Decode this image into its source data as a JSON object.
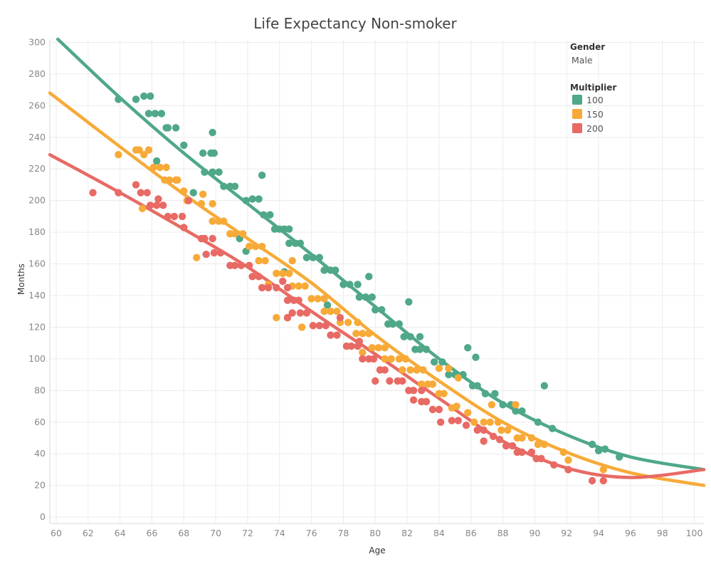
{
  "colors": {
    "100": "#4fa888",
    "150": "#f7aa38",
    "200": "#e86a64",
    "grid": "#ececec"
  },
  "legend": {
    "gender_title": "Gender",
    "gender_value": "Male",
    "multiplier_title": "Multiplier",
    "items": [
      "100",
      "150",
      "200"
    ]
  },
  "chart_data": {
    "type": "scatter",
    "title": "Life Expectancy Non-smoker",
    "xlabel": "Age",
    "ylabel": "Months",
    "xlim": [
      59.6,
      100.6
    ],
    "ylim": [
      -4,
      302
    ],
    "xticks": [
      60,
      62,
      64,
      66,
      68,
      70,
      72,
      74,
      76,
      78,
      80,
      82,
      84,
      86,
      88,
      90,
      92,
      94,
      96,
      98,
      100
    ],
    "yticks": [
      0,
      20,
      40,
      60,
      80,
      100,
      120,
      140,
      160,
      180,
      200,
      220,
      240,
      260,
      280,
      300
    ],
    "grid": true,
    "legend_position": "top-right",
    "series": [
      {
        "name": "100",
        "trend": [
          [
            60.1,
            302
          ],
          [
            64,
            265
          ],
          [
            68,
            230
          ],
          [
            72,
            198
          ],
          [
            76,
            166
          ],
          [
            80,
            133
          ],
          [
            84,
            100
          ],
          [
            88,
            72
          ],
          [
            92,
            52
          ],
          [
            96,
            38
          ],
          [
            100.6,
            30
          ]
        ],
        "points": [
          [
            63.9,
            264
          ],
          [
            65.0,
            264
          ],
          [
            65.5,
            266
          ],
          [
            65.9,
            266
          ],
          [
            65.8,
            255
          ],
          [
            66.2,
            255
          ],
          [
            66.3,
            225
          ],
          [
            66.6,
            255
          ],
          [
            66.9,
            246
          ],
          [
            67.0,
            246
          ],
          [
            67.5,
            246
          ],
          [
            68.0,
            235
          ],
          [
            68.6,
            205
          ],
          [
            69.2,
            230
          ],
          [
            69.7,
            230
          ],
          [
            69.9,
            230
          ],
          [
            69.3,
            218
          ],
          [
            69.8,
            218
          ],
          [
            70.2,
            218
          ],
          [
            69.8,
            243
          ],
          [
            70.5,
            209
          ],
          [
            70.9,
            209
          ],
          [
            71.2,
            209
          ],
          [
            71.5,
            176
          ],
          [
            71.9,
            168
          ],
          [
            71.9,
            200
          ],
          [
            72.3,
            201
          ],
          [
            72.7,
            201
          ],
          [
            72.9,
            216
          ],
          [
            73.0,
            191
          ],
          [
            73.4,
            191
          ],
          [
            73.7,
            182
          ],
          [
            74.0,
            182
          ],
          [
            74.3,
            182
          ],
          [
            74.6,
            182
          ],
          [
            74.3,
            155
          ],
          [
            74.6,
            173
          ],
          [
            75.0,
            173
          ],
          [
            75.3,
            173
          ],
          [
            75.7,
            164
          ],
          [
            76.1,
            164
          ],
          [
            76.5,
            164
          ],
          [
            76.8,
            156
          ],
          [
            77.2,
            156
          ],
          [
            77.5,
            156
          ],
          [
            77.0,
            134
          ],
          [
            78.0,
            147
          ],
          [
            78.4,
            147
          ],
          [
            78.9,
            147
          ],
          [
            79.0,
            139
          ],
          [
            79.4,
            139
          ],
          [
            79.8,
            139
          ],
          [
            79.6,
            152
          ],
          [
            80.0,
            131
          ],
          [
            80.4,
            131
          ],
          [
            80.8,
            122
          ],
          [
            81.1,
            122
          ],
          [
            81.5,
            122
          ],
          [
            81.8,
            114
          ],
          [
            82.2,
            114
          ],
          [
            82.1,
            136
          ],
          [
            82.5,
            106
          ],
          [
            82.8,
            106
          ],
          [
            83.2,
            106
          ],
          [
            82.8,
            114
          ],
          [
            83.7,
            98
          ],
          [
            84.2,
            98
          ],
          [
            84.6,
            90
          ],
          [
            85.0,
            90
          ],
          [
            85.5,
            90
          ],
          [
            85.8,
            107
          ],
          [
            86.1,
            83
          ],
          [
            86.4,
            83
          ],
          [
            86.3,
            101
          ],
          [
            86.9,
            78
          ],
          [
            87.5,
            78
          ],
          [
            88.0,
            71
          ],
          [
            88.5,
            71
          ],
          [
            88.8,
            67
          ],
          [
            89.2,
            67
          ],
          [
            90.2,
            60
          ],
          [
            90.6,
            83
          ],
          [
            91.1,
            56
          ],
          [
            93.6,
            46
          ],
          [
            94.0,
            42
          ],
          [
            94.4,
            43
          ],
          [
            95.3,
            38
          ]
        ]
      },
      {
        "name": "150",
        "trend": [
          [
            59.6,
            268
          ],
          [
            64,
            234
          ],
          [
            68,
            204
          ],
          [
            72,
            176
          ],
          [
            76,
            148
          ],
          [
            80,
            115
          ],
          [
            84,
            86
          ],
          [
            88,
            60
          ],
          [
            92,
            41
          ],
          [
            96,
            28
          ],
          [
            100.6,
            20
          ]
        ],
        "points": [
          [
            63.9,
            229
          ],
          [
            65.0,
            232
          ],
          [
            65.2,
            232
          ],
          [
            65.5,
            229
          ],
          [
            65.8,
            232
          ],
          [
            65.4,
            195
          ],
          [
            66.1,
            221
          ],
          [
            66.5,
            221
          ],
          [
            66.9,
            221
          ],
          [
            66.8,
            213
          ],
          [
            67.1,
            213
          ],
          [
            67.5,
            213
          ],
          [
            67.6,
            213
          ],
          [
            68.0,
            206
          ],
          [
            68.2,
            200
          ],
          [
            69.2,
            204
          ],
          [
            69.1,
            198
          ],
          [
            69.8,
            198
          ],
          [
            68.8,
            164
          ],
          [
            69.8,
            187
          ],
          [
            70.2,
            187
          ],
          [
            70.5,
            187
          ],
          [
            70.9,
            179
          ],
          [
            71.2,
            179
          ],
          [
            71.7,
            179
          ],
          [
            72.1,
            171
          ],
          [
            72.5,
            171
          ],
          [
            72.9,
            171
          ],
          [
            72.7,
            162
          ],
          [
            73.1,
            162
          ],
          [
            73.3,
            147
          ],
          [
            73.8,
            154
          ],
          [
            74.2,
            154
          ],
          [
            74.6,
            154
          ],
          [
            73.8,
            126
          ],
          [
            74.5,
            126
          ],
          [
            74.8,
            146
          ],
          [
            75.2,
            146
          ],
          [
            75.6,
            146
          ],
          [
            74.8,
            162
          ],
          [
            75.4,
            120
          ],
          [
            76.0,
            138
          ],
          [
            76.4,
            138
          ],
          [
            76.8,
            138
          ],
          [
            76.8,
            130
          ],
          [
            77.2,
            130
          ],
          [
            77.6,
            130
          ],
          [
            77.8,
            123
          ],
          [
            78.3,
            123
          ],
          [
            78.9,
            123
          ],
          [
            78.8,
            116
          ],
          [
            79.2,
            116
          ],
          [
            79.6,
            116
          ],
          [
            79.2,
            104
          ],
          [
            79.8,
            107
          ],
          [
            80.2,
            107
          ],
          [
            80.6,
            107
          ],
          [
            80.6,
            100
          ],
          [
            81.0,
            100
          ],
          [
            81.5,
            100
          ],
          [
            81.9,
            100
          ],
          [
            81.7,
            93
          ],
          [
            82.2,
            93
          ],
          [
            82.6,
            93
          ],
          [
            83.0,
            93
          ],
          [
            82.9,
            84
          ],
          [
            83.3,
            84
          ],
          [
            83.6,
            84
          ],
          [
            84.0,
            78
          ],
          [
            84.3,
            78
          ],
          [
            84.0,
            94
          ],
          [
            84.6,
            94
          ],
          [
            84.8,
            69
          ],
          [
            85.1,
            70
          ],
          [
            85.2,
            88
          ],
          [
            85.8,
            66
          ],
          [
            86.2,
            60
          ],
          [
            86.8,
            60
          ],
          [
            87.2,
            60
          ],
          [
            87.3,
            71
          ],
          [
            87.7,
            60
          ],
          [
            87.9,
            55
          ],
          [
            88.3,
            55
          ],
          [
            88.8,
            71
          ],
          [
            88.9,
            50
          ],
          [
            89.2,
            50
          ],
          [
            89.8,
            50
          ],
          [
            90.2,
            46
          ],
          [
            90.6,
            46
          ],
          [
            91.8,
            41
          ],
          [
            92.1,
            36
          ],
          [
            94.3,
            30
          ]
        ]
      },
      {
        "name": "200",
        "trend": [
          [
            59.6,
            229
          ],
          [
            64,
            205
          ],
          [
            68,
            182
          ],
          [
            72,
            158
          ],
          [
            76,
            130
          ],
          [
            80,
            103
          ],
          [
            84,
            75
          ],
          [
            88,
            48
          ],
          [
            92,
            31
          ],
          [
            96,
            25
          ],
          [
            100.6,
            30
          ]
        ],
        "points": [
          [
            62.3,
            205
          ],
          [
            63.9,
            205
          ],
          [
            65.0,
            210
          ],
          [
            65.3,
            205
          ],
          [
            65.7,
            205
          ],
          [
            65.9,
            197
          ],
          [
            66.3,
            197
          ],
          [
            66.4,
            201
          ],
          [
            66.7,
            197
          ],
          [
            67.0,
            190
          ],
          [
            67.4,
            190
          ],
          [
            67.9,
            190
          ],
          [
            68.0,
            183
          ],
          [
            68.3,
            200
          ],
          [
            69.1,
            176
          ],
          [
            69.3,
            176
          ],
          [
            69.8,
            176
          ],
          [
            69.4,
            166
          ],
          [
            69.9,
            167
          ],
          [
            70.3,
            167
          ],
          [
            70.9,
            159
          ],
          [
            71.2,
            159
          ],
          [
            71.6,
            159
          ],
          [
            72.1,
            159
          ],
          [
            72.3,
            152
          ],
          [
            72.7,
            152
          ],
          [
            72.9,
            145
          ],
          [
            73.3,
            145
          ],
          [
            73.8,
            145
          ],
          [
            74.2,
            149
          ],
          [
            74.5,
            145
          ],
          [
            74.5,
            137
          ],
          [
            74.9,
            137
          ],
          [
            75.2,
            137
          ],
          [
            74.5,
            126
          ],
          [
            74.8,
            129
          ],
          [
            75.3,
            129
          ],
          [
            75.7,
            129
          ],
          [
            76.1,
            121
          ],
          [
            76.5,
            121
          ],
          [
            76.9,
            121
          ],
          [
            77.2,
            115
          ],
          [
            77.6,
            115
          ],
          [
            77.8,
            126
          ],
          [
            78.2,
            108
          ],
          [
            78.5,
            108
          ],
          [
            78.9,
            108
          ],
          [
            79.0,
            111
          ],
          [
            79.2,
            100
          ],
          [
            79.6,
            100
          ],
          [
            79.9,
            100
          ],
          [
            80.0,
            86
          ],
          [
            80.3,
            93
          ],
          [
            80.6,
            93
          ],
          [
            80.9,
            86
          ],
          [
            81.4,
            86
          ],
          [
            81.7,
            86
          ],
          [
            82.1,
            80
          ],
          [
            82.4,
            80
          ],
          [
            82.9,
            80
          ],
          [
            82.4,
            74
          ],
          [
            82.9,
            73
          ],
          [
            83.2,
            73
          ],
          [
            83.6,
            68
          ],
          [
            84.0,
            68
          ],
          [
            84.1,
            60
          ],
          [
            84.8,
            61
          ],
          [
            85.2,
            61
          ],
          [
            85.7,
            58
          ],
          [
            86.4,
            55
          ],
          [
            86.8,
            55
          ],
          [
            86.8,
            48
          ],
          [
            87.4,
            51
          ],
          [
            87.8,
            49
          ],
          [
            88.2,
            45
          ],
          [
            88.6,
            45
          ],
          [
            88.9,
            41
          ],
          [
            89.2,
            41
          ],
          [
            89.8,
            41
          ],
          [
            90.1,
            37
          ],
          [
            90.4,
            37
          ],
          [
            91.2,
            33
          ],
          [
            92.1,
            30
          ],
          [
            93.6,
            23
          ],
          [
            94.3,
            23
          ]
        ]
      }
    ]
  }
}
